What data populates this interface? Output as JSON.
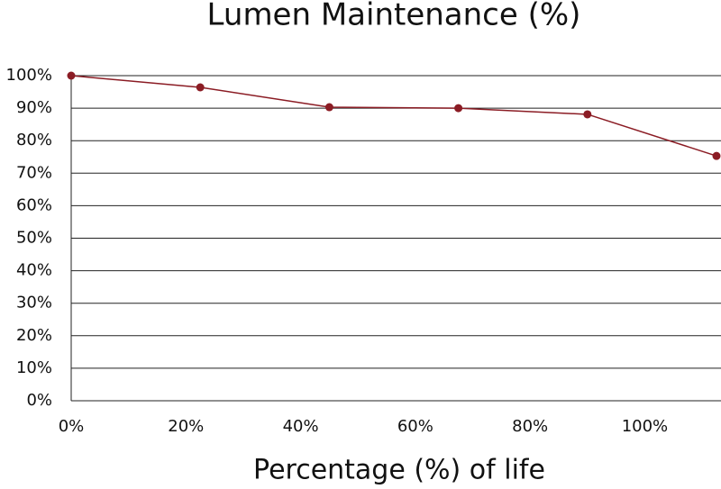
{
  "chart_data": {
    "type": "line",
    "title": "Lumen Maintenance (%)",
    "x_label": "Percentage (%) of life",
    "x": [
      0,
      22.5,
      45,
      67.5,
      90,
      112.5
    ],
    "values": [
      100,
      96.4,
      90.3,
      90,
      88.1,
      75.3
    ],
    "color": "#8b1c24",
    "xlim": [
      0,
      112.5
    ],
    "xticks": [
      {
        "value": 0,
        "label": "0%"
      },
      {
        "value": 20,
        "label": "20%"
      },
      {
        "value": 40,
        "label": "40%"
      },
      {
        "value": 60,
        "label": "60%"
      },
      {
        "value": 80,
        "label": "80%"
      },
      {
        "value": 100,
        "label": "100%"
      }
    ],
    "ylim": [
      0,
      100
    ],
    "yticks": [
      {
        "value": 0,
        "label": "0%"
      },
      {
        "value": 10,
        "label": "10%"
      },
      {
        "value": 20,
        "label": "20%"
      },
      {
        "value": 30,
        "label": "30%"
      },
      {
        "value": 40,
        "label": "40%"
      },
      {
        "value": 50,
        "label": "50%"
      },
      {
        "value": 60,
        "label": "60%"
      },
      {
        "value": 70,
        "label": "70%"
      },
      {
        "value": 80,
        "label": "80%"
      },
      {
        "value": 90,
        "label": "90%"
      },
      {
        "value": 100,
        "label": "100%"
      }
    ],
    "grid": true
  }
}
